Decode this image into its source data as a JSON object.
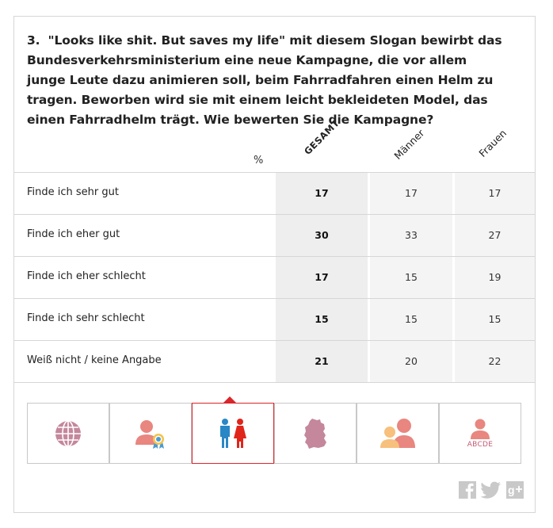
{
  "question": {
    "number": "3.",
    "text": "\"Looks like shit. But saves my life\" mit diesem Slogan bewirbt das Bundesverkehrsministerium eine neue Kampagne, die vor allem junge Leute dazu animieren soll, beim Fahrradfahren einen Helm zu tragen. Beworben wird sie mit einem leicht bekleideten Model, das einen Fahrradhelm trägt. Wie bewerten Sie die Kampagne?"
  },
  "table": {
    "unit_label": "%",
    "columns": [
      "GESAMT",
      "Männer",
      "Frauen"
    ],
    "rows": [
      {
        "label": "Finde ich sehr gut",
        "values": [
          "17",
          "17",
          "17"
        ]
      },
      {
        "label": "Finde ich eher gut",
        "values": [
          "30",
          "33",
          "27"
        ]
      },
      {
        "label": "Finde ich eher schlecht",
        "values": [
          "17",
          "15",
          "19"
        ]
      },
      {
        "label": "Finde ich sehr schlecht",
        "values": [
          "15",
          "15",
          "15"
        ]
      },
      {
        "label": "Weiß nicht / keine Angabe",
        "values": [
          "21",
          "20",
          "22"
        ]
      }
    ]
  },
  "tabs": [
    {
      "icon": "globe-icon",
      "active": false
    },
    {
      "icon": "person-award-icon",
      "active": false
    },
    {
      "icon": "man-woman-icon",
      "active": true
    },
    {
      "icon": "germany-map-icon",
      "active": false
    },
    {
      "icon": "age-groups-icon",
      "active": false
    },
    {
      "icon": "education-icon",
      "active": false,
      "caption": "ABCDE"
    }
  ],
  "social": [
    "facebook-icon",
    "twitter-icon",
    "google-plus-icon"
  ],
  "colors": {
    "accent": "#d9262b",
    "tab_icon": "#c4879b",
    "male": "#2a87c6",
    "female": "#e0251b"
  }
}
